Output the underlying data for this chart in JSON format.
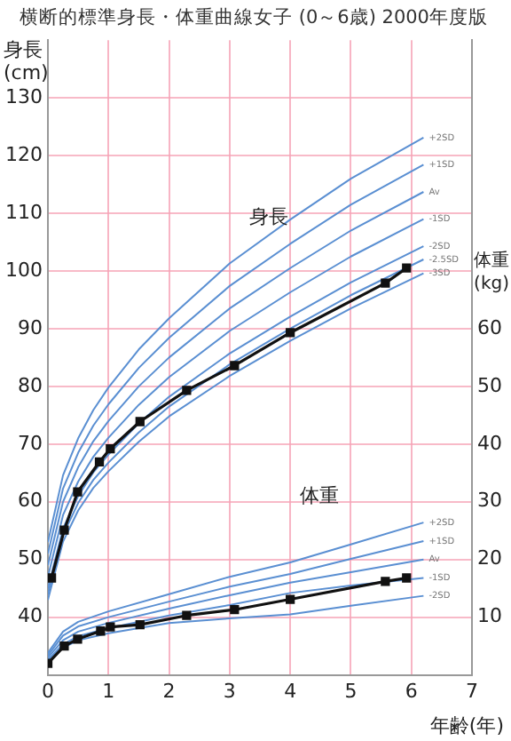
{
  "chart_data": {
    "type": "line",
    "title": "横断的標準身長・体重曲線女子 (0～6歳) 2000年度版",
    "xlabel": "年齢(年)",
    "ylabel": "身長\n(cm)",
    "y2label": "体重\n(kg)",
    "annotations": [
      "身長",
      "体重"
    ],
    "xlim": [
      0,
      7
    ],
    "xticks": [
      0,
      1,
      2,
      3,
      4,
      5,
      6,
      7
    ],
    "ylim": [
      30,
      140
    ],
    "yticks": [
      40,
      50,
      60,
      70,
      80,
      90,
      100,
      110,
      120,
      130
    ],
    "y2lim": [
      0,
      110
    ],
    "y2ticks": [
      10,
      20,
      30,
      40,
      50,
      60
    ],
    "grid": true,
    "legend": false,
    "marker": "none",
    "line_style": "solid",
    "series": [
      {
        "name": "+2SD",
        "color": "#5a8fd2",
        "x": [
          0,
          0.25,
          0.5,
          0.75,
          1,
          1.5,
          2,
          3,
          4,
          5,
          6.2
        ],
        "values": [
          53,
          64.6,
          71,
          75.9,
          79.8,
          86.4,
          91.8,
          101.3,
          108.9,
          116,
          123.1
        ]
      },
      {
        "name": "+1SD",
        "color": "#5a8fd2",
        "x": [
          0,
          0.25,
          0.5,
          0.75,
          1,
          1.5,
          2,
          3,
          4,
          5,
          6.2
        ],
        "values": [
          51,
          62.3,
          68.5,
          73.2,
          76.9,
          83.2,
          88.4,
          97.4,
          104.7,
          111.5,
          118.4
        ]
      },
      {
        "name": "Av",
        "color": "#5a8fd2",
        "x": [
          0,
          0.25,
          0.5,
          0.75,
          1,
          1.5,
          2,
          3,
          4,
          5,
          6.2
        ],
        "values": [
          49,
          60,
          66,
          70.5,
          74,
          80,
          85,
          93.5,
          100.5,
          107,
          113.7
        ]
      },
      {
        "name": "-1SD",
        "color": "#5a8fd2",
        "x": [
          0,
          0.25,
          0.5,
          0.75,
          1,
          1.5,
          2,
          3,
          4,
          5,
          6.2
        ],
        "values": [
          47,
          57.7,
          63.5,
          67.8,
          71.1,
          76.8,
          81.6,
          89.6,
          96.3,
          102.5,
          109
        ]
      },
      {
        "name": "-2SD",
        "color": "#5a8fd2",
        "x": [
          0,
          0.25,
          0.5,
          0.75,
          1,
          1.5,
          2,
          3,
          4,
          5,
          6.2
        ],
        "values": [
          45,
          55.4,
          61,
          65.1,
          68.2,
          73.6,
          78.2,
          85.7,
          92.1,
          98,
          104.3
        ]
      },
      {
        "name": "-2.5SD",
        "color": "#5a8fd2",
        "x": [
          0,
          0.25,
          0.5,
          0.75,
          1,
          1.5,
          2,
          3,
          4,
          5,
          6.2
        ],
        "values": [
          44,
          54.3,
          59.8,
          63.8,
          66.8,
          72,
          76.5,
          83.8,
          90,
          95.8,
          102
        ]
      },
      {
        "name": "-3SD",
        "color": "#5a8fd2",
        "x": [
          0,
          0.25,
          0.5,
          0.75,
          1,
          1.5,
          2,
          3,
          4,
          5,
          6.2
        ],
        "values": [
          43,
          53.1,
          58.5,
          62.4,
          65.3,
          70.4,
          74.8,
          81.8,
          87.9,
          93.5,
          99.6
        ]
      },
      {
        "color": "#111111",
        "marker": "square",
        "x": [
          0.06,
          0.27,
          0.49,
          0.85,
          1.03,
          1.52,
          2.29,
          3.08,
          4,
          5.57,
          5.92
        ],
        "values": [
          46.8,
          55.1,
          61.7,
          66.9,
          69.2,
          73.9,
          79.3,
          83.6,
          89.3,
          97.9,
          100.5
        ]
      },
      {
        "name": "+2SD",
        "color": "#5a8fd2",
        "axis": "y2",
        "x": [
          0,
          0.25,
          0.5,
          1,
          2,
          3,
          4,
          5,
          6.2
        ],
        "values": [
          3.8,
          7.5,
          9.2,
          11,
          14,
          17,
          19.5,
          22.6,
          26.4
        ]
      },
      {
        "name": "+1SD",
        "color": "#5a8fd2",
        "axis": "y2",
        "x": [
          0,
          0.25,
          0.5,
          1,
          2,
          3,
          4,
          5,
          6.2
        ],
        "values": [
          3.4,
          6.8,
          8.4,
          10,
          12.7,
          15.3,
          17.5,
          20.1,
          23.2
        ]
      },
      {
        "name": "Av",
        "color": "#5a8fd2",
        "axis": "y2",
        "x": [
          0,
          0.25,
          0.5,
          1,
          2,
          3,
          4,
          5,
          6.2
        ],
        "values": [
          3,
          6,
          7.5,
          9,
          11.5,
          13.8,
          16,
          17.8,
          20
        ]
      },
      {
        "name": "-1SD",
        "color": "#5a8fd2",
        "axis": "y2",
        "x": [
          0,
          0.25,
          0.5,
          1,
          2,
          3,
          4,
          5,
          6.2
        ],
        "values": [
          2.6,
          5.3,
          6.7,
          8.1,
          10.3,
          12.1,
          14.2,
          15.5,
          16.8
        ]
      },
      {
        "name": "-2SD",
        "color": "#5a8fd2",
        "axis": "y2",
        "x": [
          0,
          0.25,
          0.5,
          1,
          2,
          3,
          4,
          5,
          6.2
        ],
        "values": [
          2.2,
          4.7,
          6,
          7.2,
          9,
          9.8,
          10.5,
          12,
          13.7
        ]
      },
      {
        "color": "#111111",
        "axis": "y2",
        "marker": "square",
        "x": [
          0,
          0.27,
          0.49,
          0.87,
          1.03,
          1.52,
          2.29,
          3.08,
          4,
          5.57,
          5.92
        ],
        "values": [
          2,
          5,
          6.2,
          7.6,
          8.3,
          8.7,
          10.3,
          11.3,
          13.1,
          16.2,
          16.8
        ]
      }
    ]
  }
}
